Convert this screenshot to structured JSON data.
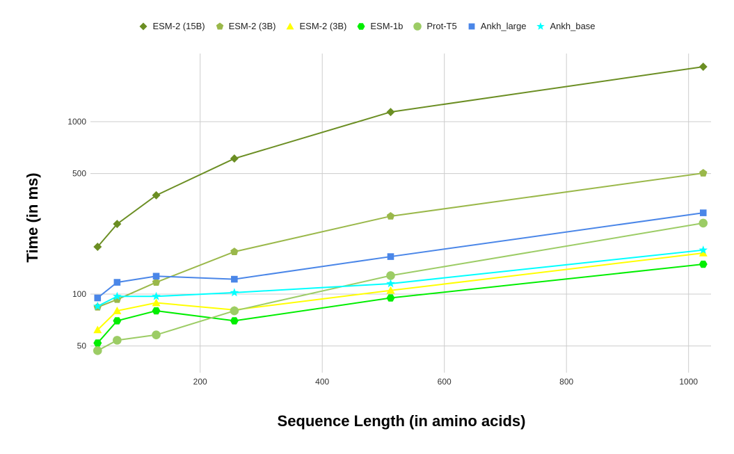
{
  "chart_data": {
    "type": "line",
    "title": "",
    "xlabel": "Sequence Length (in amino acids)",
    "ylabel": "Time (in ms)",
    "yscale": "log",
    "x": [
      32,
      64,
      128,
      256,
      512,
      1024
    ],
    "xlim": [
      0,
      1040
    ],
    "ylim": [
      35,
      2400
    ],
    "x_ticks": [
      200,
      400,
      600,
      800,
      1000
    ],
    "y_ticks": [
      50,
      100,
      500,
      1000
    ],
    "grid": true,
    "legend_position": "top",
    "series": [
      {
        "name": "ESM-2 (15B)",
        "color": "#6b8e23",
        "marker": "diamond",
        "values": [
          188,
          255,
          374,
          611,
          1138,
          2082
        ]
      },
      {
        "name": "ESM-2 (3B)",
        "color": "#9ab84a",
        "marker": "pentagon",
        "values": [
          84,
          93,
          117,
          176,
          283,
          503
        ]
      },
      {
        "name": "ESM-2 (3B)",
        "color": "#ffff00",
        "marker": "triangle",
        "values": [
          62,
          80,
          89,
          81,
          105,
          173
        ]
      },
      {
        "name": "ESM-1b",
        "color": "#00ee00",
        "marker": "hexagon",
        "values": [
          52,
          70,
          80,
          70,
          95,
          149
        ]
      },
      {
        "name": "Prot-T5",
        "color": "#9ccc65",
        "marker": "circle",
        "values": [
          47,
          54,
          58,
          80,
          128,
          258
        ]
      },
      {
        "name": "Ankh_large",
        "color": "#4a86e8",
        "marker": "square",
        "values": [
          95,
          117,
          127,
          122,
          165,
          296
        ]
      },
      {
        "name": "Ankh_base",
        "color": "#00ffff",
        "marker": "star",
        "values": [
          85,
          97,
          97,
          102,
          115,
          180
        ]
      }
    ]
  },
  "axes": {
    "y_title": "Time (in ms)",
    "x_title": "Sequence Length (in amino acids)"
  }
}
